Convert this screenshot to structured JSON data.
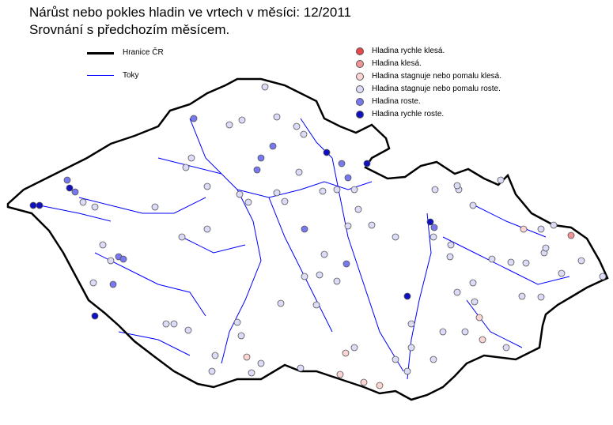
{
  "title": "Nárůst nebo pokles hladin ve vrtech v měsíci: 12/2011",
  "subtitle": "Srovnání s předchozím  měsícem.",
  "legend_lines": [
    {
      "label": "Hranice ČR",
      "color": "#000000"
    },
    {
      "label": "Toky",
      "color": "#0000ff"
    }
  ],
  "legend_points": [
    {
      "label": "Hladina rychle klesá.",
      "color": "#e8484c"
    },
    {
      "label": "Hladina klesá.",
      "color": "#f09498"
    },
    {
      "label": "Hladina stagnuje nebo pomalu klesá.",
      "color": "#fcd4d4"
    },
    {
      "label": "Hladina stagnuje nebo pomalu roste.",
      "color": "#dcdcf8"
    },
    {
      "label": "Hladina roste.",
      "color": "#7878f0"
    },
    {
      "label": "Hladina rychle roste.",
      "color": "#1010c0"
    }
  ]
}
